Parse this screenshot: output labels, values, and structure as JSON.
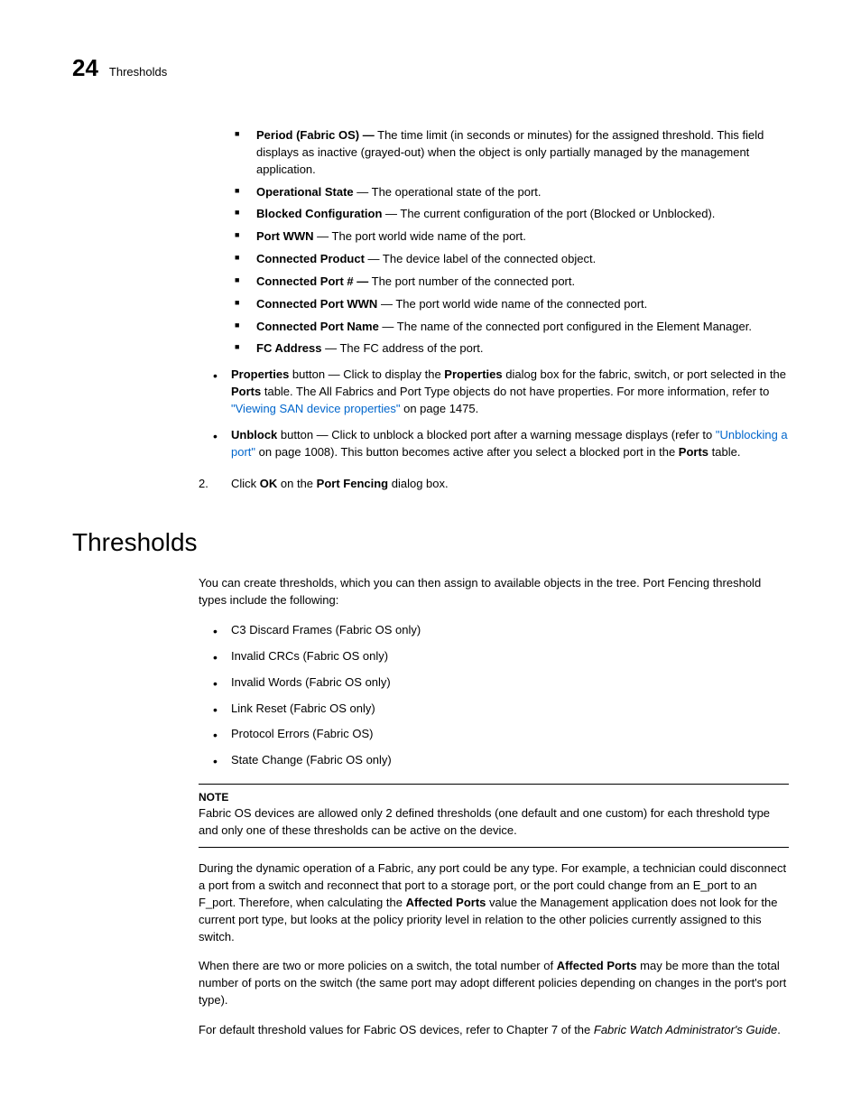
{
  "header": {
    "chapterNum": "24",
    "chapterTitle": "Thresholds"
  },
  "sqItems": [
    {
      "label": "Period (Fabric OS) —",
      "text": " The time limit (in seconds or minutes) for the assigned threshold. This field displays as inactive (grayed-out) when the object is only partially managed by the management application."
    },
    {
      "label": "Operational State",
      "text": " — The operational state of the port."
    },
    {
      "label": "Blocked Configuration",
      "text": " — The current configuration of the port (Blocked or Unblocked)."
    },
    {
      "label": "Port WWN",
      "text": " — The port world wide name of the port."
    },
    {
      "label": "Connected Product",
      "text": " — The device label of the connected object."
    },
    {
      "label": "Connected Port # —",
      "text": " The port number of the connected port."
    },
    {
      "label": "Connected Port WWN",
      "text": " — The port world wide name of the connected port."
    },
    {
      "label": "Connected Port Name",
      "text": " — The name of the connected port configured in the Element Manager."
    },
    {
      "label": "FC Address",
      "text": " — The FC address of the port."
    }
  ],
  "bulletItems": [
    {
      "b1": "Properties",
      "t1": " button — Click to display the ",
      "b2": "Properties",
      "t2": " dialog box for the fabric, switch, or port selected in the ",
      "b3": "Ports",
      "t3": " table. The All Fabrics and Port Type objects do not have properties. For more information, refer to ",
      "link": "\"Viewing SAN device properties\"",
      "t4": " on page 1475."
    },
    {
      "b1": "Unblock",
      "t1": " button — Click to unblock a blocked port after a warning message displays (refer to ",
      "link": "\"Unblocking a port\"",
      "t2": " on page 1008). This button becomes active after you select a blocked port in the ",
      "b2": "Ports",
      "t3": " table."
    }
  ],
  "step": {
    "num": "2.",
    "t1": "Click ",
    "b1": "OK",
    "t2": " on the ",
    "b2": "Port Fencing",
    "t3": " dialog box."
  },
  "section": {
    "heading": "Thresholds",
    "intro": "You can create thresholds, which you can then assign to available objects in the tree. Port Fencing threshold types include the following:",
    "types": [
      "C3 Discard Frames (Fabric OS only)",
      "Invalid CRCs (Fabric OS only)",
      "Invalid Words (Fabric OS only)",
      "Link Reset (Fabric OS only)",
      "Protocol Errors (Fabric OS)",
      "State Change (Fabric OS only)"
    ],
    "noteLabel": "NOTE",
    "noteText": "Fabric OS devices are allowed only 2 defined thresholds (one default and one custom) for each threshold type and only one of these thresholds can be active on the device.",
    "p1a": "During the dynamic operation of a Fabric, any port could be any type. For example, a technician could disconnect a port from a switch and reconnect that port to a storage port, or the port could change from an E_port to an F_port. Therefore, when calculating the ",
    "p1b": "Affected Ports",
    "p1c": " value the Management application does not look for the current port type, but looks at the policy priority level in relation to the other policies currently assigned to this switch.",
    "p2a": "When there are two or more policies on a switch, the total number of ",
    "p2b": "Affected Ports",
    "p2c": " may be more than the total number of ports on the switch (the same port may adopt different policies depending on changes in the port's port type).",
    "p3a": "For default threshold values for Fabric OS devices, refer to Chapter 7 of the ",
    "p3b": "Fabric Watch Administrator's Guide",
    "p3c": "."
  }
}
